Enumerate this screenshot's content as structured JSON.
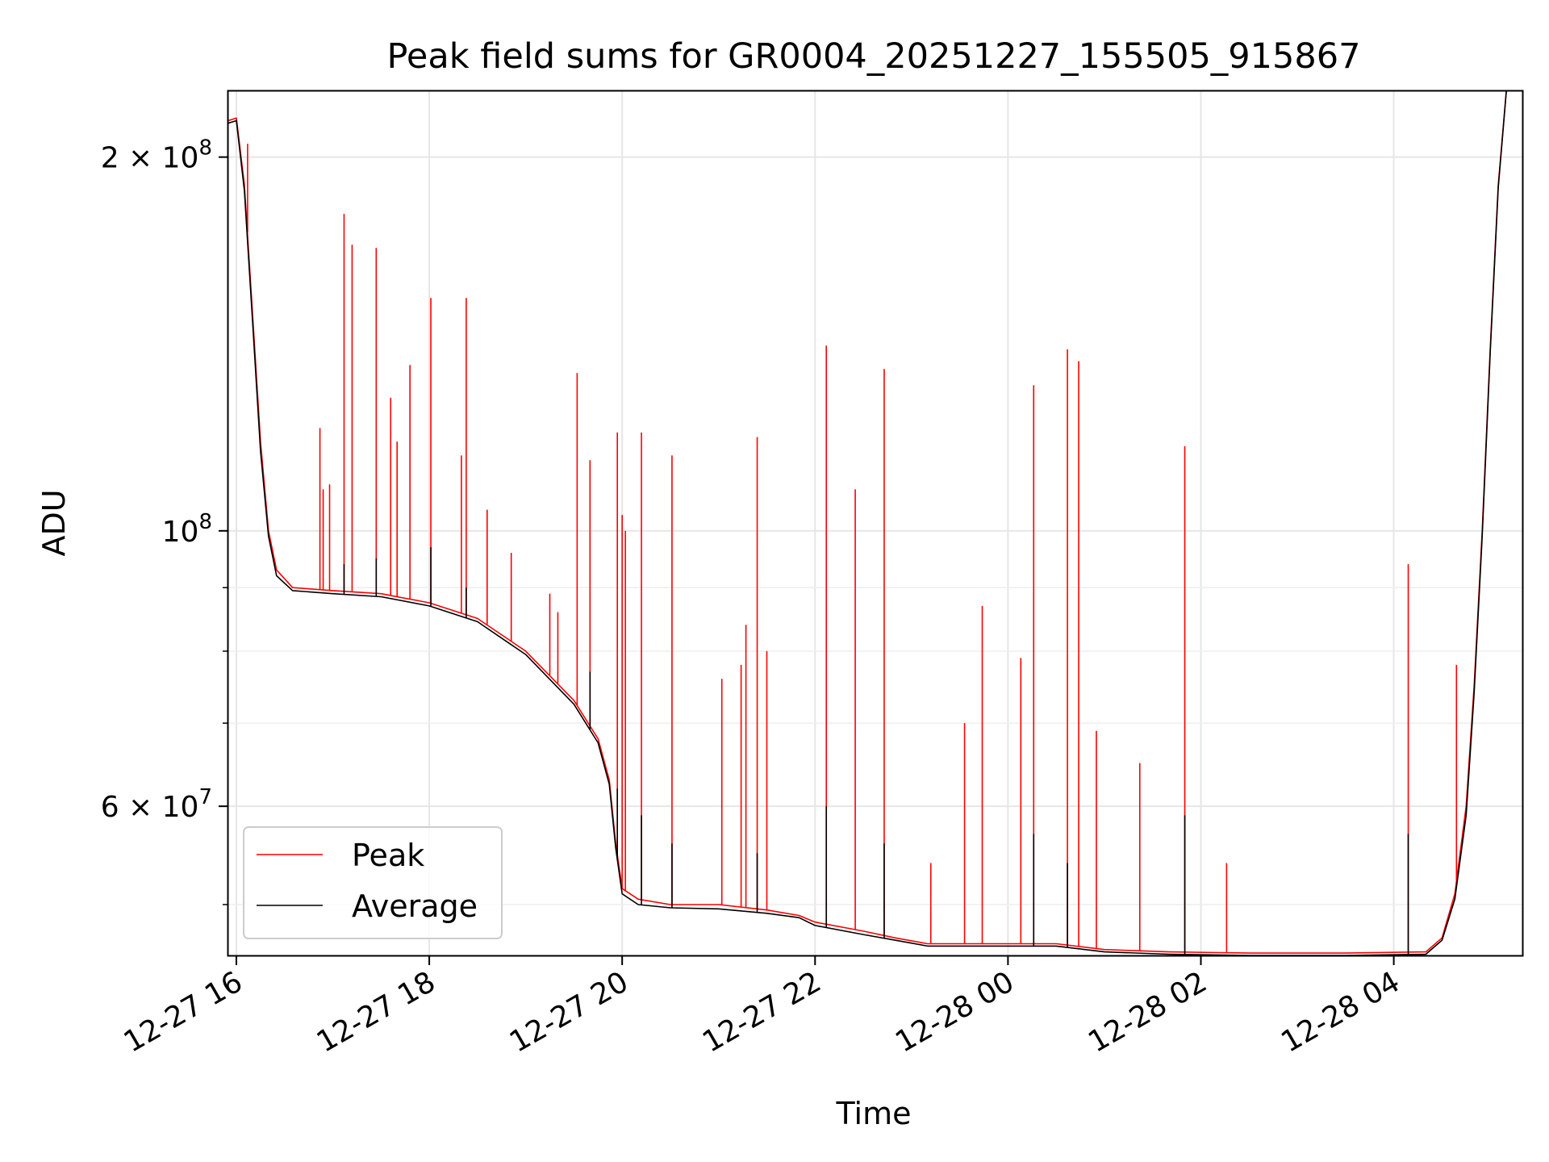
{
  "chart_data": {
    "type": "line",
    "title": "Peak field sums for GR0004_20251227_155505_915867",
    "xlabel": "Time",
    "ylabel": "ADU",
    "x_scale": "time",
    "y_scale": "log",
    "x_range": [
      "2025-12-27 15:55",
      "2025-12-28 05:20"
    ],
    "ylim": [
      45500000,
      226000000
    ],
    "grid": true,
    "legend_position": "lower-left",
    "x_ticks": [
      "12-27 16",
      "12-27 18",
      "12-27 20",
      "12-27 22",
      "12-28 00",
      "12-28 02",
      "12-28 04"
    ],
    "x_tick_times": [
      "2025-12-27 16:00",
      "2025-12-27 18:00",
      "2025-12-27 20:00",
      "2025-12-27 22:00",
      "2025-12-28 00:00",
      "2025-12-28 02:00",
      "2025-12-28 04:00"
    ],
    "y_ticks": [
      {
        "value": 200000000,
        "mantissa": "2",
        "exponent": "8"
      },
      {
        "value": 100000000,
        "mantissa": "",
        "exponent": "8"
      },
      {
        "value": 60000000,
        "mantissa": "6",
        "exponent": "7"
      }
    ],
    "y_minor_values": [
      50000000,
      70000000,
      80000000,
      90000000
    ],
    "series": [
      {
        "name": "Peak",
        "color": "#ff0000",
        "baseline": [
          [
            "2025-12-27 15:55",
            214000000
          ],
          [
            "2025-12-27 16:00",
            215000000
          ],
          [
            "2025-12-27 16:05",
            190000000
          ],
          [
            "2025-12-27 16:10",
            150000000
          ],
          [
            "2025-12-27 16:15",
            118000000
          ],
          [
            "2025-12-27 16:20",
            100000000
          ],
          [
            "2025-12-27 16:25",
            93000000
          ],
          [
            "2025-12-27 16:35",
            90000000
          ],
          [
            "2025-12-27 17:00",
            89500000
          ],
          [
            "2025-12-27 17:30",
            89000000
          ],
          [
            "2025-12-27 18:00",
            87500000
          ],
          [
            "2025-12-27 18:30",
            85000000
          ],
          [
            "2025-12-27 19:00",
            80000000
          ],
          [
            "2025-12-27 19:30",
            73000000
          ],
          [
            "2025-12-27 19:45",
            68000000
          ],
          [
            "2025-12-27 19:52",
            63000000
          ],
          [
            "2025-12-27 19:56",
            56000000
          ],
          [
            "2025-12-27 20:00",
            51500000
          ],
          [
            "2025-12-27 20:10",
            50500000
          ],
          [
            "2025-12-27 20:30",
            50000000
          ],
          [
            "2025-12-27 21:00",
            50000000
          ],
          [
            "2025-12-27 21:30",
            49500000
          ],
          [
            "2025-12-27 21:50",
            49000000
          ],
          [
            "2025-12-27 22:00",
            48400000
          ],
          [
            "2025-12-27 22:30",
            47600000
          ],
          [
            "2025-12-27 22:50",
            47000000
          ],
          [
            "2025-12-27 23:10",
            46500000
          ],
          [
            "2025-12-27 23:40",
            46500000
          ],
          [
            "2025-12-28 00:30",
            46500000
          ],
          [
            "2025-12-28 01:00",
            46000000
          ],
          [
            "2025-12-28 01:40",
            45800000
          ],
          [
            "2025-12-28 02:30",
            45700000
          ],
          [
            "2025-12-28 03:30",
            45700000
          ],
          [
            "2025-12-28 04:20",
            45800000
          ],
          [
            "2025-12-28 04:30",
            47000000
          ],
          [
            "2025-12-28 04:38",
            51000000
          ],
          [
            "2025-12-28 04:45",
            60000000
          ],
          [
            "2025-12-28 04:50",
            75000000
          ],
          [
            "2025-12-28 04:55",
            100000000
          ],
          [
            "2025-12-28 05:00",
            140000000
          ],
          [
            "2025-12-28 05:05",
            190000000
          ],
          [
            "2025-12-28 05:10",
            226000000
          ]
        ],
        "spikes": [
          [
            "2025-12-27 16:07",
            205000000
          ],
          [
            "2025-12-27 16:52",
            121000000
          ],
          [
            "2025-12-27 16:54",
            108000000
          ],
          [
            "2025-12-27 16:58",
            109000000
          ],
          [
            "2025-12-27 17:07",
            180000000
          ],
          [
            "2025-12-27 17:12",
            170000000
          ],
          [
            "2025-12-27 17:27",
            169000000
          ],
          [
            "2025-12-27 17:36",
            128000000
          ],
          [
            "2025-12-27 17:40",
            118000000
          ],
          [
            "2025-12-27 17:48",
            136000000
          ],
          [
            "2025-12-27 18:01",
            154000000
          ],
          [
            "2025-12-27 18:20",
            115000000
          ],
          [
            "2025-12-27 18:23",
            154000000
          ],
          [
            "2025-12-27 18:36",
            104000000
          ],
          [
            "2025-12-27 18:51",
            96000000
          ],
          [
            "2025-12-27 19:15",
            89000000
          ],
          [
            "2025-12-27 19:20",
            86000000
          ],
          [
            "2025-12-27 19:32",
            134000000
          ],
          [
            "2025-12-27 19:40",
            114000000
          ],
          [
            "2025-12-27 19:57",
            120000000
          ],
          [
            "2025-12-27 20:00",
            103000000
          ],
          [
            "2025-12-27 20:02",
            100000000
          ],
          [
            "2025-12-27 20:12",
            120000000
          ],
          [
            "2025-12-27 20:31",
            115000000
          ],
          [
            "2025-12-27 21:02",
            76000000
          ],
          [
            "2025-12-27 21:14",
            78000000
          ],
          [
            "2025-12-27 21:17",
            84000000
          ],
          [
            "2025-12-27 21:24",
            119000000
          ],
          [
            "2025-12-27 21:30",
            80000000
          ],
          [
            "2025-12-27 22:07",
            141000000
          ],
          [
            "2025-12-27 22:25",
            108000000
          ],
          [
            "2025-12-27 22:43",
            135000000
          ],
          [
            "2025-12-27 23:12",
            54000000
          ],
          [
            "2025-12-27 23:33",
            70000000
          ],
          [
            "2025-12-27 23:44",
            87000000
          ],
          [
            "2025-12-28 00:08",
            79000000
          ],
          [
            "2025-12-28 00:16",
            131000000
          ],
          [
            "2025-12-28 00:37",
            140000000
          ],
          [
            "2025-12-28 00:44",
            137000000
          ],
          [
            "2025-12-28 00:55",
            69000000
          ],
          [
            "2025-12-28 01:22",
            65000000
          ],
          [
            "2025-12-28 01:50",
            117000000
          ],
          [
            "2025-12-28 02:16",
            54000000
          ],
          [
            "2025-12-28 04:09",
            94000000
          ],
          [
            "2025-12-28 04:39",
            78000000
          ]
        ]
      },
      {
        "name": "Average",
        "color": "#000000",
        "baseline": [
          [
            "2025-12-27 15:55",
            213000000
          ],
          [
            "2025-12-27 16:00",
            214000000
          ],
          [
            "2025-12-27 16:05",
            188000000
          ],
          [
            "2025-12-27 16:10",
            148000000
          ],
          [
            "2025-12-27 16:15",
            116000000
          ],
          [
            "2025-12-27 16:20",
            99000000
          ],
          [
            "2025-12-27 16:25",
            92000000
          ],
          [
            "2025-12-27 16:35",
            89500000
          ],
          [
            "2025-12-27 17:00",
            89000000
          ],
          [
            "2025-12-27 17:30",
            88500000
          ],
          [
            "2025-12-27 18:00",
            87000000
          ],
          [
            "2025-12-27 18:30",
            84500000
          ],
          [
            "2025-12-27 19:00",
            79500000
          ],
          [
            "2025-12-27 19:30",
            72500000
          ],
          [
            "2025-12-27 19:45",
            67500000
          ],
          [
            "2025-12-27 19:52",
            62500000
          ],
          [
            "2025-12-27 19:56",
            55500000
          ],
          [
            "2025-12-27 20:00",
            51000000
          ],
          [
            "2025-12-27 20:10",
            50000000
          ],
          [
            "2025-12-27 20:30",
            49700000
          ],
          [
            "2025-12-27 21:00",
            49600000
          ],
          [
            "2025-12-27 21:30",
            49200000
          ],
          [
            "2025-12-27 21:50",
            48800000
          ],
          [
            "2025-12-27 22:00",
            48100000
          ],
          [
            "2025-12-27 22:30",
            47300000
          ],
          [
            "2025-12-27 22:50",
            46800000
          ],
          [
            "2025-12-27 23:10",
            46300000
          ],
          [
            "2025-12-27 23:40",
            46300000
          ],
          [
            "2025-12-28 00:30",
            46300000
          ],
          [
            "2025-12-28 01:00",
            45800000
          ],
          [
            "2025-12-28 01:40",
            45600000
          ],
          [
            "2025-12-28 02:30",
            45500000
          ],
          [
            "2025-12-28 03:30",
            45500000
          ],
          [
            "2025-12-28 04:20",
            45600000
          ],
          [
            "2025-12-28 04:30",
            46800000
          ],
          [
            "2025-12-28 04:38",
            50500000
          ],
          [
            "2025-12-28 04:45",
            59000000
          ],
          [
            "2025-12-28 04:50",
            74000000
          ],
          [
            "2025-12-28 04:55",
            99000000
          ],
          [
            "2025-12-28 05:00",
            139000000
          ],
          [
            "2025-12-28 05:05",
            189000000
          ],
          [
            "2025-12-28 05:10",
            226000000
          ]
        ],
        "spikes": [
          [
            "2025-12-27 17:07",
            94000000
          ],
          [
            "2025-12-27 17:27",
            95000000
          ],
          [
            "2025-12-27 18:01",
            97000000
          ],
          [
            "2025-12-27 18:23",
            90000000
          ],
          [
            "2025-12-27 19:40",
            77000000
          ],
          [
            "2025-12-27 19:57",
            62000000
          ],
          [
            "2025-12-27 20:12",
            59000000
          ],
          [
            "2025-12-27 20:31",
            56000000
          ],
          [
            "2025-12-27 21:24",
            55000000
          ],
          [
            "2025-12-27 22:07",
            60000000
          ],
          [
            "2025-12-27 22:43",
            56000000
          ],
          [
            "2025-12-28 00:16",
            57000000
          ],
          [
            "2025-12-28 00:37",
            54000000
          ],
          [
            "2025-12-28 01:50",
            59000000
          ],
          [
            "2025-12-28 04:09",
            57000000
          ]
        ]
      }
    ]
  }
}
